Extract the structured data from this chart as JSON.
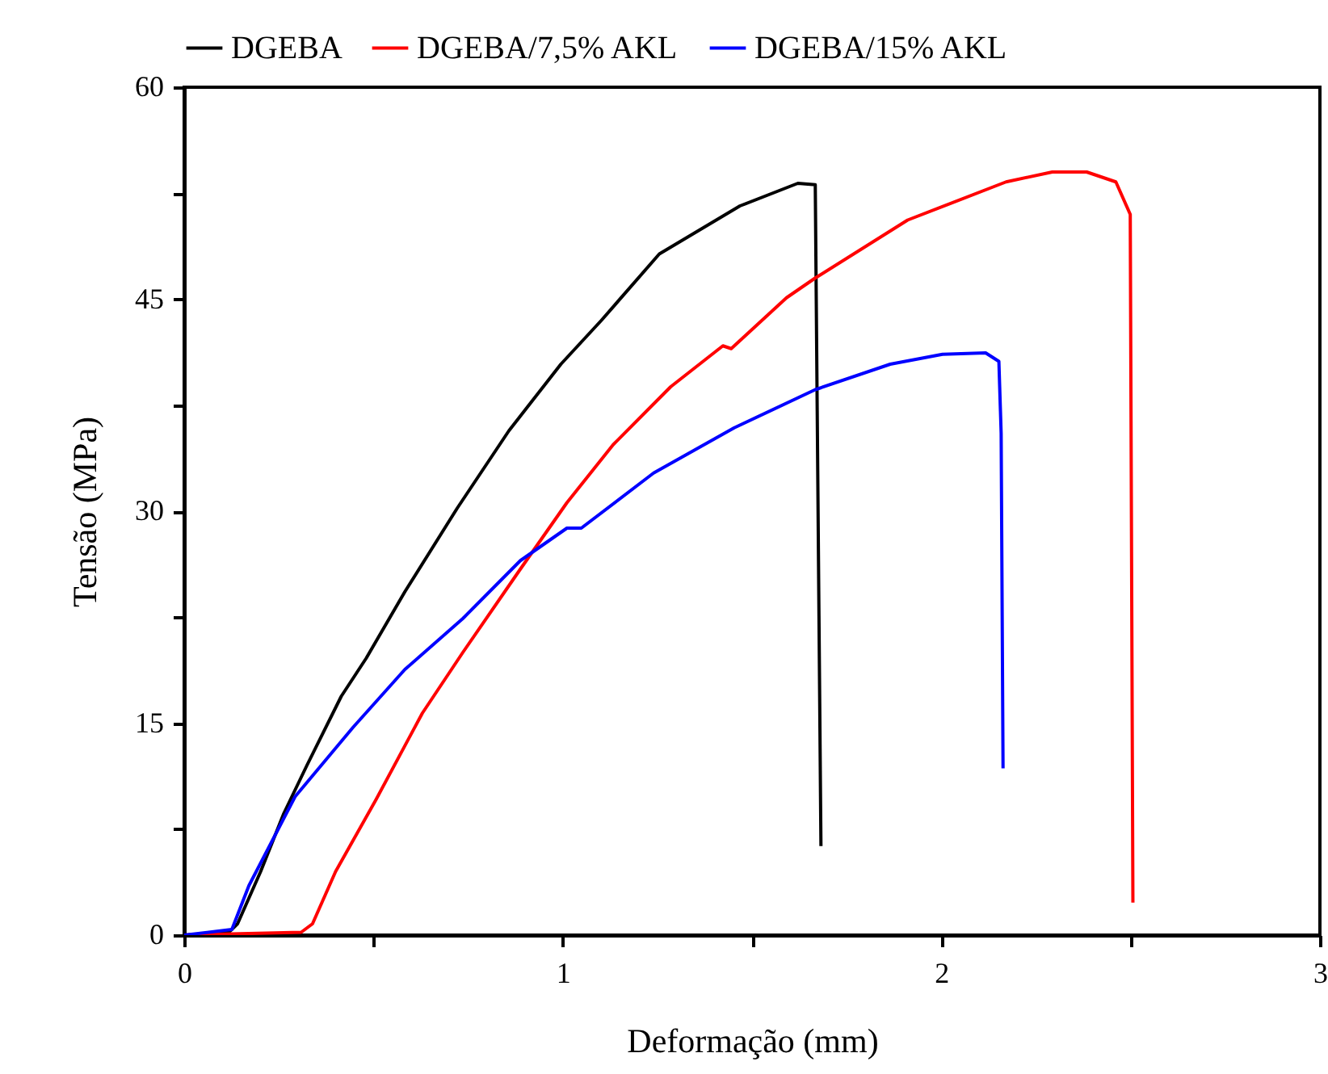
{
  "chart_data": {
    "type": "line",
    "xlabel": "Deformação (mm)",
    "ylabel": "Tensão (MPa)",
    "xlim": [
      0,
      3
    ],
    "ylim": [
      0,
      60
    ],
    "xticks": [
      0,
      {
        "value": 0.5,
        "label": null
      },
      1,
      {
        "value": 1.5,
        "label": null
      },
      2,
      {
        "value": 2.5,
        "label": null
      },
      3
    ],
    "yticks": [
      0,
      {
        "value": 7.5,
        "label": null
      },
      15,
      {
        "value": 22.5,
        "label": null
      },
      30,
      {
        "value": 37.5,
        "label": null
      },
      45,
      {
        "value": 52.5,
        "label": null
      },
      60
    ],
    "grid": false,
    "legend": "top",
    "marker": "none",
    "line_style": "solid",
    "series": [
      {
        "name": "DGEBA",
        "color": "#000000",
        "x": [
          0,
          0.118,
          0.141,
          0.202,
          0.263,
          0.324,
          0.415,
          0.481,
          0.583,
          0.721,
          0.858,
          0.995,
          1.102,
          1.255,
          1.468,
          1.621,
          1.667,
          1.682
        ],
        "values": [
          0,
          0.2,
          0.8,
          4.5,
          8.6,
          12.0,
          16.9,
          19.6,
          24.3,
          30.2,
          35.7,
          40.4,
          43.5,
          48.2,
          51.6,
          53.2,
          53.1,
          6.3
        ]
      },
      {
        "name": "DGEBA/7,5% AKL",
        "color": "#ff0000",
        "x": [
          0,
          0.309,
          0.339,
          0.4,
          0.507,
          0.629,
          0.736,
          0.888,
          1.011,
          1.133,
          1.285,
          1.423,
          1.445,
          1.591,
          1.667,
          1.911,
          2.171,
          2.293,
          2.384,
          2.461,
          2.499,
          2.506
        ],
        "values": [
          0,
          0.2,
          0.8,
          4.5,
          9.6,
          15.7,
          20.0,
          25.9,
          30.6,
          34.7,
          38.8,
          41.7,
          41.5,
          45.1,
          46.5,
          50.6,
          53.3,
          54.0,
          54.0,
          53.3,
          51.0,
          2.3
        ]
      },
      {
        "name": "DGEBA/15% AKL",
        "color": "#0000ff",
        "x": [
          0,
          0.126,
          0.171,
          0.293,
          0.446,
          0.583,
          0.736,
          0.888,
          1.011,
          1.049,
          1.24,
          1.453,
          1.667,
          1.865,
          2.003,
          2.117,
          2.152,
          2.158,
          2.163
        ],
        "values": [
          0,
          0.4,
          3.5,
          9.8,
          14.7,
          18.8,
          22.4,
          26.5,
          28.8,
          28.8,
          32.7,
          35.9,
          38.6,
          40.4,
          41.1,
          41.2,
          40.6,
          35.5,
          11.8
        ]
      }
    ]
  }
}
